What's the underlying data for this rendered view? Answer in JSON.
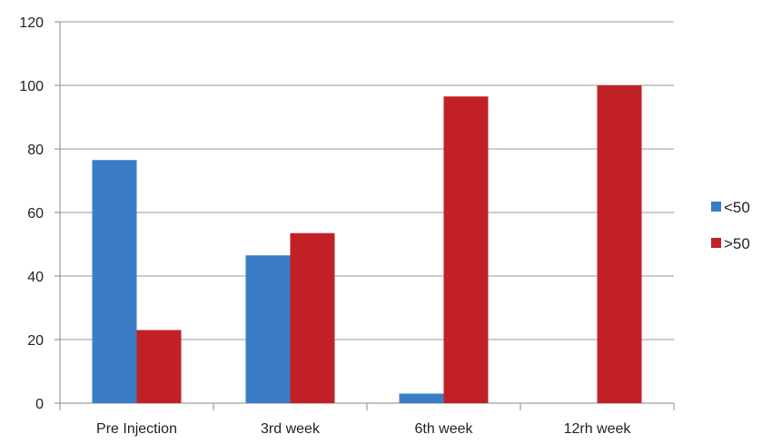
{
  "chart_data": {
    "type": "bar",
    "categories": [
      "Pre Injection",
      "3rd week",
      "6th week",
      "12rh week"
    ],
    "series": [
      {
        "name": "<50",
        "values": [
          76.5,
          46.5,
          3,
          0
        ],
        "color": "#3a7dc6"
      },
      {
        "name": ">50",
        "values": [
          23,
          53.5,
          96.5,
          100
        ],
        "color": "#c12126"
      }
    ],
    "ylim": [
      0,
      120
    ],
    "yticks": [
      0,
      20,
      40,
      60,
      80,
      100,
      120
    ],
    "grid": true,
    "legend_position": "right"
  }
}
